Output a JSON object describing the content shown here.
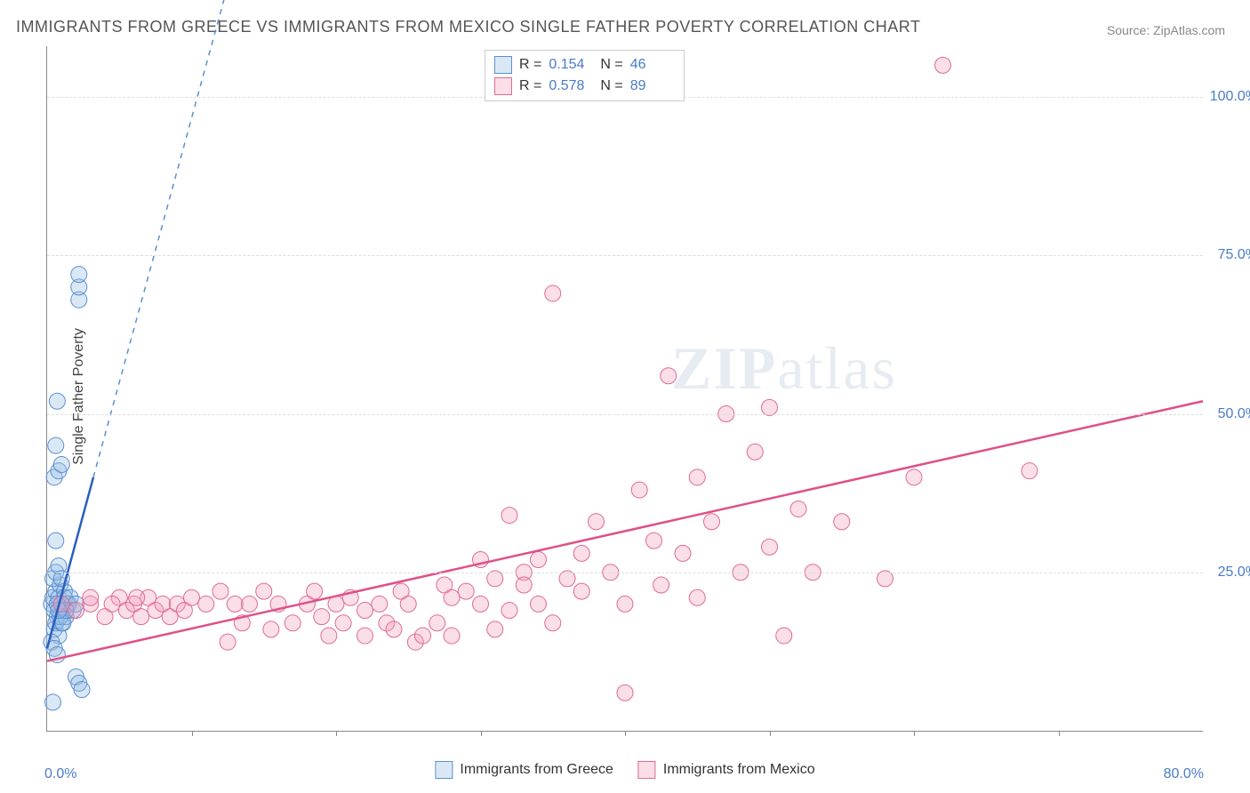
{
  "title": "IMMIGRANTS FROM GREECE VS IMMIGRANTS FROM MEXICO SINGLE FATHER POVERTY CORRELATION CHART",
  "source": "Source: ZipAtlas.com",
  "y_axis_label": "Single Father Poverty",
  "watermark": "ZIPatlas",
  "chart": {
    "type": "scatter",
    "xlim": [
      0,
      80
    ],
    "ylim": [
      0,
      108
    ],
    "x_tick_step": 10,
    "y_ticks": [
      25,
      50,
      75,
      100
    ],
    "y_tick_labels": [
      "25.0%",
      "50.0%",
      "75.0%",
      "100.0%"
    ],
    "x_min_label": "0.0%",
    "x_max_label": "80.0%",
    "background_color": "#ffffff",
    "grid_color": "#dddddd",
    "axis_color": "#888888",
    "tick_label_color": "#4a7bc8",
    "marker_radius": 9,
    "marker_opacity": 0.35,
    "line_width": 2.5
  },
  "series": [
    {
      "id": "greece",
      "label": "Immigrants from Greece",
      "draw_color": "#6fa3e0",
      "fill_color": "rgba(150,190,230,0.35)",
      "stroke_color": "#5b8fd0",
      "R": "0.154",
      "N": "46",
      "trend": {
        "x1": 0,
        "y1": 13,
        "x2": 3.2,
        "y2": 40,
        "color": "#2a5fbf",
        "solid_end_x": 3.2,
        "dash_to_x": 20,
        "dash_to_y": 180
      },
      "points": [
        [
          0.3,
          20
        ],
        [
          0.4,
          21
        ],
        [
          0.5,
          19
        ],
        [
          0.6,
          22
        ],
        [
          0.7,
          18
        ],
        [
          0.8,
          21
        ],
        [
          0.9,
          23
        ],
        [
          1.0,
          20
        ],
        [
          1.1,
          19
        ],
        [
          1.2,
          22
        ],
        [
          0.5,
          16
        ],
        [
          0.6,
          17
        ],
        [
          0.8,
          15
        ],
        [
          1.0,
          17
        ],
        [
          1.3,
          18
        ],
        [
          1.5,
          20
        ],
        [
          0.4,
          24
        ],
        [
          0.6,
          25
        ],
        [
          0.8,
          26
        ],
        [
          1.0,
          24
        ],
        [
          0.3,
          14
        ],
        [
          0.5,
          13
        ],
        [
          0.7,
          12
        ],
        [
          2.0,
          8.5
        ],
        [
          2.2,
          7.5
        ],
        [
          2.4,
          6.5
        ],
        [
          0.4,
          4.5
        ],
        [
          0.6,
          30
        ],
        [
          0.5,
          40
        ],
        [
          0.8,
          41
        ],
        [
          1.0,
          42
        ],
        [
          0.6,
          45
        ],
        [
          0.7,
          52
        ],
        [
          2.2,
          68
        ],
        [
          2.2,
          70
        ],
        [
          2.2,
          72
        ],
        [
          1.2,
          21
        ],
        [
          1.4,
          20
        ],
        [
          1.6,
          21
        ],
        [
          1.8,
          19
        ],
        [
          2.0,
          20
        ],
        [
          0.9,
          18
        ],
        [
          1.1,
          17
        ],
        [
          1.3,
          19
        ],
        [
          0.7,
          20
        ],
        [
          0.8,
          19
        ]
      ]
    },
    {
      "id": "mexico",
      "label": "Immigrants from Mexico",
      "draw_color": "#e86a9a",
      "fill_color": "rgba(240,160,190,0.35)",
      "stroke_color": "#e06a95",
      "R": "0.578",
      "N": "89",
      "trend": {
        "x1": 0,
        "y1": 11,
        "x2": 80,
        "y2": 52,
        "color": "#e05088"
      },
      "points": [
        [
          1,
          20
        ],
        [
          2,
          19
        ],
        [
          3,
          20
        ],
        [
          4,
          18
        ],
        [
          5,
          21
        ],
        [
          5.5,
          19
        ],
        [
          6,
          20
        ],
        [
          6.5,
          18
        ],
        [
          7,
          21
        ],
        [
          7.5,
          19
        ],
        [
          8,
          20
        ],
        [
          8.5,
          18
        ],
        [
          9,
          20
        ],
        [
          9.5,
          19
        ],
        [
          10,
          21
        ],
        [
          11,
          20
        ],
        [
          12,
          22
        ],
        [
          12.5,
          14
        ],
        [
          13,
          20
        ],
        [
          13.5,
          17
        ],
        [
          14,
          20
        ],
        [
          15,
          22
        ],
        [
          15.5,
          16
        ],
        [
          16,
          20
        ],
        [
          17,
          17
        ],
        [
          18,
          20
        ],
        [
          18.5,
          22
        ],
        [
          19,
          18
        ],
        [
          19.5,
          15
        ],
        [
          20,
          20
        ],
        [
          20.5,
          17
        ],
        [
          21,
          21
        ],
        [
          22,
          19
        ],
        [
          22,
          15
        ],
        [
          23,
          20
        ],
        [
          23.5,
          17
        ],
        [
          24,
          16
        ],
        [
          24.5,
          22
        ],
        [
          25,
          20
        ],
        [
          25.5,
          14
        ],
        [
          26,
          15
        ],
        [
          27,
          17
        ],
        [
          27.5,
          23
        ],
        [
          28,
          21
        ],
        [
          28,
          15
        ],
        [
          29,
          22
        ],
        [
          30,
          20
        ],
        [
          30,
          27
        ],
        [
          31,
          16
        ],
        [
          31,
          24
        ],
        [
          32,
          34
        ],
        [
          32,
          19
        ],
        [
          33,
          25
        ],
        [
          33,
          23
        ],
        [
          34,
          20
        ],
        [
          34,
          27
        ],
        [
          35,
          17
        ],
        [
          35,
          69
        ],
        [
          36,
          24
        ],
        [
          37,
          22
        ],
        [
          37,
          28
        ],
        [
          38,
          33
        ],
        [
          39,
          25
        ],
        [
          40,
          20
        ],
        [
          40,
          6
        ],
        [
          41,
          38
        ],
        [
          42,
          30
        ],
        [
          42.5,
          23
        ],
        [
          43,
          56
        ],
        [
          44,
          28
        ],
        [
          45,
          21
        ],
        [
          45,
          40
        ],
        [
          46,
          33
        ],
        [
          47,
          50
        ],
        [
          48,
          25
        ],
        [
          49,
          44
        ],
        [
          50,
          29
        ],
        [
          50,
          51
        ],
        [
          51,
          15
        ],
        [
          52,
          35
        ],
        [
          53,
          25
        ],
        [
          55,
          33
        ],
        [
          58,
          24
        ],
        [
          60,
          40
        ],
        [
          62,
          105
        ],
        [
          68,
          41
        ],
        [
          3,
          21
        ],
        [
          4.5,
          20
        ],
        [
          6.2,
          21
        ]
      ]
    }
  ],
  "stats_legend": {
    "rows": [
      {
        "series": "greece",
        "r_label": "R =",
        "r_val": "0.154",
        "n_label": "N =",
        "n_val": "46"
      },
      {
        "series": "mexico",
        "r_label": "R =",
        "r_val": "0.578",
        "n_label": "N =",
        "n_val": "89"
      }
    ]
  }
}
